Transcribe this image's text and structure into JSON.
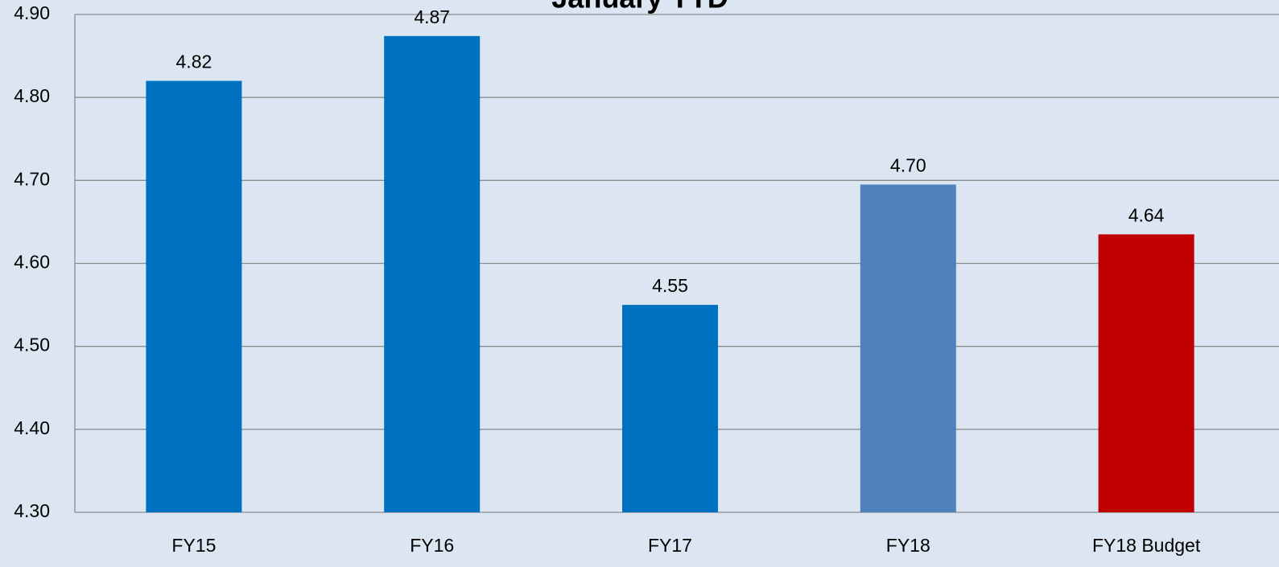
{
  "chart_data": {
    "type": "bar",
    "title": "January YTD",
    "categories": [
      "FY15",
      "FY16",
      "FY17",
      "FY18",
      "FY18 Budget"
    ],
    "values": [
      4.82,
      4.874,
      4.55,
      4.695,
      4.635
    ],
    "value_labels": [
      "4.82",
      "4.87",
      "4.55",
      "4.70",
      "4.64"
    ],
    "colors": [
      "#0070c0",
      "#0070c0",
      "#0070c0",
      "#4f81bd",
      "#c00000"
    ],
    "ylim": [
      4.3,
      4.9
    ],
    "yticks": [
      {
        "value": 4.3,
        "label": "4.30"
      },
      {
        "value": 4.4,
        "label": "4.40"
      },
      {
        "value": 4.5,
        "label": "4.50"
      },
      {
        "value": 4.6,
        "label": "4.60"
      },
      {
        "value": 4.7,
        "label": "4.70"
      },
      {
        "value": 4.8,
        "label": "4.80"
      },
      {
        "value": 4.9,
        "label": "4.90"
      }
    ],
    "grid": true
  }
}
